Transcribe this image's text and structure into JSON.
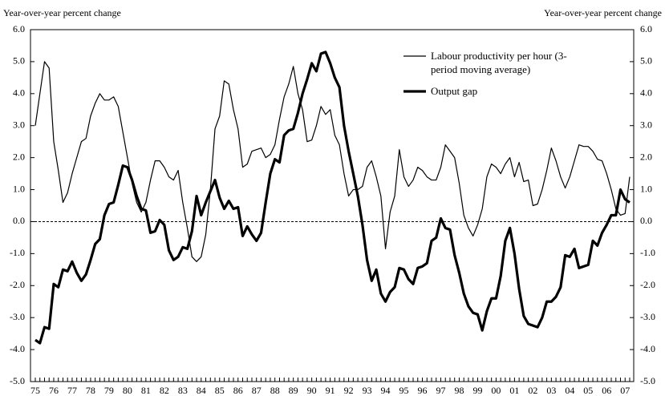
{
  "chart_data": {
    "type": "line",
    "y_label": "Year-over-year percent change",
    "y2_label": "Year-over-year percent change",
    "categories": [
      "75",
      null,
      null,
      null,
      "76",
      null,
      null,
      null,
      "77",
      null,
      null,
      null,
      "78",
      null,
      null,
      null,
      "79",
      null,
      null,
      null,
      "80",
      null,
      null,
      null,
      "81",
      null,
      null,
      null,
      "82",
      null,
      null,
      null,
      "83",
      null,
      null,
      null,
      "84",
      null,
      null,
      null,
      "85",
      null,
      null,
      null,
      "86",
      null,
      null,
      null,
      "87",
      null,
      null,
      null,
      "88",
      null,
      null,
      null,
      "89",
      null,
      null,
      null,
      "90",
      null,
      null,
      null,
      "91",
      null,
      null,
      null,
      "92",
      null,
      null,
      null,
      "93",
      null,
      null,
      null,
      "94",
      null,
      null,
      null,
      "95",
      null,
      null,
      null,
      "96",
      null,
      null,
      null,
      "97",
      null,
      null,
      null,
      "98",
      null,
      null,
      null,
      "99",
      null,
      null,
      null,
      "00",
      null,
      null,
      null,
      "01",
      null,
      null,
      null,
      "02",
      null,
      null,
      null,
      "03",
      null,
      null,
      null,
      "04",
      null,
      null,
      null,
      "05",
      null,
      null,
      null,
      "06",
      null,
      null,
      null,
      "07",
      null
    ],
    "series": [
      {
        "name": "Labour productivity per hour (3-period moving average)",
        "color": "#000000",
        "values": [
          3.0,
          4.0,
          5.0,
          4.8,
          2.5,
          1.6,
          0.6,
          0.9,
          1.5,
          2.0,
          2.5,
          2.6,
          3.3,
          3.7,
          4.0,
          3.8,
          3.8,
          3.9,
          3.6,
          2.8,
          2.0,
          1.2,
          0.6,
          0.3,
          0.6,
          1.3,
          1.9,
          1.9,
          1.7,
          1.4,
          1.3,
          1.6,
          0.6,
          -0.2,
          -1.1,
          -1.25,
          -1.1,
          -0.4,
          1.0,
          2.9,
          3.3,
          4.4,
          4.3,
          3.5,
          2.9,
          1.7,
          1.8,
          2.2,
          2.25,
          2.3,
          2.0,
          2.1,
          2.4,
          3.2,
          3.9,
          4.3,
          4.85,
          4.0,
          3.5,
          2.5,
          2.55,
          3.0,
          3.6,
          3.35,
          3.5,
          2.7,
          2.4,
          1.5,
          0.8,
          1.0,
          1.0,
          1.1,
          1.7,
          1.9,
          1.4,
          0.8,
          -0.85,
          0.3,
          0.8,
          2.25,
          1.4,
          1.1,
          1.3,
          1.7,
          1.6,
          1.4,
          1.3,
          1.3,
          1.7,
          2.4,
          2.2,
          2.0,
          1.2,
          0.2,
          -0.2,
          -0.45,
          -0.1,
          0.4,
          1.4,
          1.8,
          1.7,
          1.5,
          1.8,
          2.0,
          1.4,
          1.85,
          1.25,
          1.3,
          0.5,
          0.55,
          1.0,
          1.6,
          2.3,
          1.9,
          1.4,
          1.05,
          1.4,
          1.9,
          2.4,
          2.35,
          2.35,
          2.2,
          1.95,
          1.9,
          1.5,
          1.0,
          0.4,
          0.2,
          0.25,
          1.4
        ]
      },
      {
        "name": "Output gap",
        "color": "#000000",
        "values": [
          -3.7,
          -3.8,
          -3.3,
          -3.35,
          -1.95,
          -2.05,
          -1.5,
          -1.55,
          -1.25,
          -1.6,
          -1.85,
          -1.65,
          -1.2,
          -0.7,
          -0.55,
          0.2,
          0.55,
          0.6,
          1.15,
          1.75,
          1.7,
          1.3,
          0.8,
          0.4,
          0.35,
          -0.35,
          -0.3,
          0.05,
          -0.1,
          -0.9,
          -1.2,
          -1.1,
          -0.8,
          -0.85,
          -0.3,
          0.8,
          0.2,
          0.6,
          0.95,
          1.3,
          0.75,
          0.4,
          0.65,
          0.4,
          0.45,
          -0.45,
          -0.15,
          -0.4,
          -0.6,
          -0.35,
          0.6,
          1.5,
          1.95,
          1.85,
          2.7,
          2.85,
          2.9,
          3.4,
          4.0,
          4.45,
          4.95,
          4.7,
          5.25,
          5.3,
          4.95,
          4.5,
          4.2,
          3.0,
          2.2,
          1.5,
          0.8,
          -0.1,
          -1.2,
          -1.85,
          -1.5,
          -2.25,
          -2.5,
          -2.2,
          -2.05,
          -1.45,
          -1.5,
          -1.8,
          -1.95,
          -1.45,
          -1.4,
          -1.3,
          -0.6,
          -0.5,
          0.1,
          -0.2,
          -0.25,
          -1.05,
          -1.6,
          -2.25,
          -2.65,
          -2.85,
          -2.9,
          -3.4,
          -2.8,
          -2.4,
          -2.4,
          -1.7,
          -0.6,
          -0.2,
          -1.0,
          -2.1,
          -2.95,
          -3.2,
          -3.25,
          -3.3,
          -3.0,
          -2.5,
          -2.5,
          -2.35,
          -2.05,
          -1.05,
          -1.1,
          -0.85,
          -1.45,
          -1.4,
          -1.35,
          -0.6,
          -0.75,
          -0.35,
          -0.1,
          0.2,
          0.2,
          1.0,
          0.7,
          0.6
        ]
      }
    ],
    "ylim": [
      -5,
      6
    ],
    "yticks": [
      {
        "value": -5,
        "label": "-5.0"
      },
      {
        "value": -4,
        "label": "-4.0"
      },
      {
        "value": -3,
        "label": "-3.0"
      },
      {
        "value": -2,
        "label": "-2.0"
      },
      {
        "value": -1,
        "label": "-1.0"
      },
      {
        "value": 0,
        "label": "0.0"
      },
      {
        "value": 1,
        "label": "1.0"
      },
      {
        "value": 2,
        "label": "2.0"
      },
      {
        "value": 3,
        "label": "3.0"
      },
      {
        "value": 4,
        "label": "4.0"
      },
      {
        "value": 5,
        "label": "5.0"
      },
      {
        "value": 6,
        "label": "6.0"
      }
    ],
    "y2lim": [
      -5,
      6
    ],
    "y2ticks": [
      {
        "value": -5,
        "label": "-5.0"
      },
      {
        "value": -4,
        "label": "-4.0"
      },
      {
        "value": -3,
        "label": "-3.0"
      },
      {
        "value": -2,
        "label": "-2.0"
      },
      {
        "value": -1,
        "label": "-1.0"
      },
      {
        "value": 0,
        "label": "0.0"
      },
      {
        "value": 1,
        "label": "1.0"
      },
      {
        "value": 2,
        "label": "2.0"
      },
      {
        "value": 3,
        "label": "3.0"
      },
      {
        "value": 4,
        "label": "4.0"
      },
      {
        "value": 5,
        "label": "5.0"
      },
      {
        "value": 6,
        "label": "6.0"
      }
    ],
    "grid": false
  }
}
